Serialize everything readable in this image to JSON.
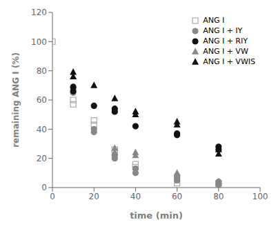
{
  "chart_data": {
    "type": "scatter",
    "xlabel": "time (min)",
    "ylabel": "remaining ANG I (%)",
    "xlim": [
      0,
      100
    ],
    "ylim": [
      0,
      120
    ],
    "xticks": [
      0,
      20,
      40,
      60,
      80,
      100
    ],
    "yticks": [
      0,
      20,
      40,
      60,
      80,
      100,
      120
    ],
    "grid": false,
    "legend": "upper right",
    "series": [
      {
        "name": "ANG I",
        "color": "#aaaaaa",
        "marker": "square_open",
        "x": [
          0,
          10,
          10,
          20,
          20,
          30,
          30,
          40,
          40,
          60,
          60,
          80,
          80
        ],
        "values": [
          100,
          60,
          57,
          46,
          43,
          26,
          24,
          16,
          14,
          5,
          3,
          3,
          2
        ]
      },
      {
        "name": "ANG I + IY",
        "color": "#888888",
        "marker": "circle",
        "x": [
          10,
          10,
          20,
          20,
          30,
          30,
          40,
          40,
          60,
          60,
          80,
          80
        ],
        "values": [
          68,
          65,
          40,
          38,
          22,
          20,
          13,
          10,
          8,
          5,
          4,
          2
        ]
      },
      {
        "name": "ANG I + RIY",
        "color": "#111111",
        "marker": "circle",
        "x": [
          10,
          10,
          20,
          30,
          30,
          40,
          60,
          60,
          80,
          80
        ],
        "values": [
          69,
          66,
          56,
          54,
          52,
          42,
          37,
          36,
          28,
          26
        ]
      },
      {
        "name": "ANG I + VW",
        "color": "#888888",
        "marker": "triangle",
        "x": [
          30,
          30,
          40,
          40,
          60,
          60,
          80
        ],
        "values": [
          27,
          24,
          24,
          22,
          10,
          8,
          4
        ]
      },
      {
        "name": "ANG I + VWIS",
        "color": "#111111",
        "marker": "triangle",
        "x": [
          10,
          10,
          20,
          30,
          40,
          40,
          60,
          60,
          80,
          80
        ],
        "values": [
          79,
          76,
          70,
          61,
          52,
          50,
          45,
          43,
          26,
          23
        ]
      }
    ]
  }
}
